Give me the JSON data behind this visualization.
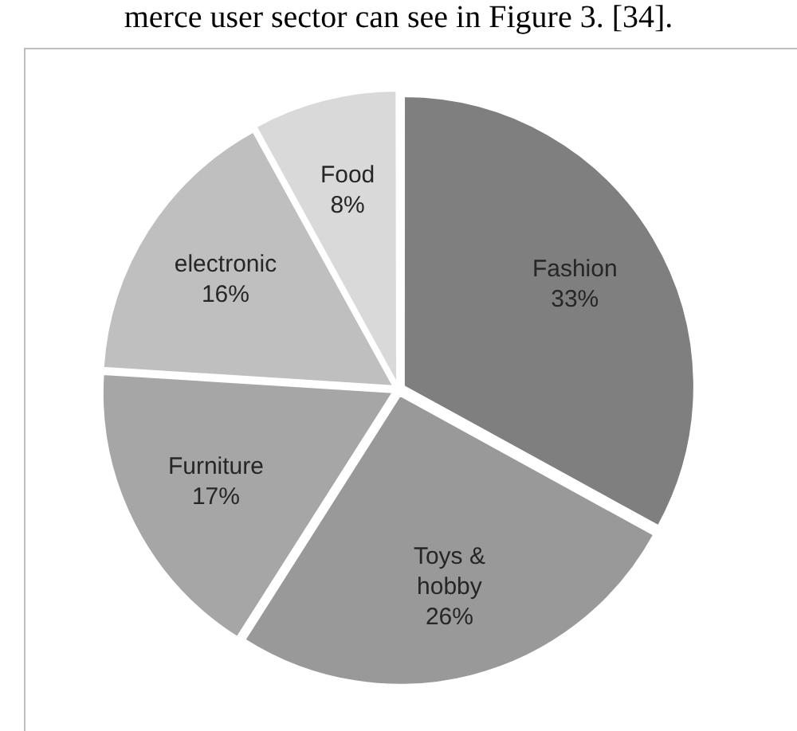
{
  "chart_data": {
    "type": "pie",
    "categories": [
      "Fashion",
      "Toys & hobby",
      "Furniture",
      "electronic",
      "Food"
    ],
    "values": [
      33,
      26,
      17,
      16,
      8
    ],
    "colors": [
      "#7f7f7f",
      "#999999",
      "#a6a6a6",
      "#bfbfbf",
      "#d9d9d9"
    ],
    "value_labels": [
      "33%",
      "26%",
      "17%",
      "16%",
      "8%"
    ],
    "legend": false,
    "annotations": [
      "merce user sector can see in Figure 3. [34]."
    ]
  }
}
